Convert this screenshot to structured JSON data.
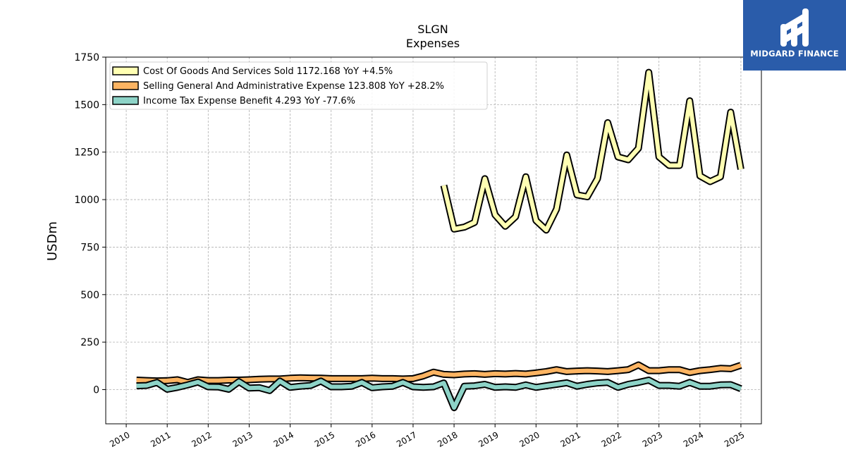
{
  "logo": {
    "text": "MIDGARD FINANCE",
    "background": "#2a5caa"
  },
  "chart_data": {
    "type": "line",
    "title": "SLGN",
    "subtitle": "Expenses",
    "ylabel": "USDm",
    "xlabel": "",
    "ylim": [
      -180,
      1750
    ],
    "xlim": [
      2009.5,
      2025.5
    ],
    "yticks": [
      0,
      250,
      500,
      750,
      1000,
      1250,
      1500,
      1750
    ],
    "xticks": [
      2010,
      2011,
      2012,
      2013,
      2014,
      2015,
      2016,
      2017,
      2018,
      2019,
      2020,
      2021,
      2022,
      2023,
      2024,
      2025
    ],
    "grid": true,
    "legend_position": "top-left",
    "series": [
      {
        "name": "Cost Of Goods And Services Sold  1172.168 YoY +4.5%",
        "color": "#ffffb3",
        "x": [
          2017.75,
          2018.0,
          2018.25,
          2018.5,
          2018.75,
          2019.0,
          2019.25,
          2019.5,
          2019.75,
          2020.0,
          2020.25,
          2020.5,
          2020.75,
          2021.0,
          2021.25,
          2021.5,
          2021.75,
          2022.0,
          2022.25,
          2022.5,
          2022.75,
          2023.0,
          2023.25,
          2023.5,
          2023.75,
          2024.0,
          2024.25,
          2024.5,
          2024.75,
          2025.0
        ],
        "y": [
          1075,
          845,
          855,
          880,
          1110,
          920,
          860,
          910,
          1120,
          890,
          840,
          950,
          1235,
          1025,
          1015,
          1110,
          1405,
          1225,
          1210,
          1270,
          1670,
          1225,
          1180,
          1180,
          1520,
          1125,
          1095,
          1120,
          1460,
          1160
        ]
      },
      {
        "name": "Selling General And Administrative Expense  123.808 YoY +28.2%",
        "color": "#fdb462",
        "x": [
          2010.25,
          2010.5,
          2010.75,
          2011.0,
          2011.25,
          2011.5,
          2011.75,
          2012.0,
          2012.25,
          2012.5,
          2012.75,
          2013.0,
          2013.25,
          2013.5,
          2013.75,
          2014.0,
          2014.25,
          2014.5,
          2014.75,
          2015.0,
          2015.25,
          2015.5,
          2015.75,
          2016.0,
          2016.25,
          2016.5,
          2016.75,
          2017.0,
          2017.25,
          2017.5,
          2017.75,
          2018.0,
          2018.25,
          2018.5,
          2018.75,
          2019.0,
          2019.25,
          2019.5,
          2019.75,
          2020.0,
          2020.25,
          2020.5,
          2020.75,
          2021.0,
          2021.25,
          2021.5,
          2021.75,
          2022.0,
          2022.25,
          2022.5,
          2022.75,
          2023.0,
          2023.25,
          2023.5,
          2023.75,
          2024.0,
          2024.25,
          2024.5,
          2024.75,
          2025.0
        ],
        "y": [
          50,
          48,
          46,
          47,
          52,
          38,
          52,
          48,
          48,
          50,
          50,
          52,
          55,
          56,
          56,
          60,
          62,
          61,
          60,
          58,
          58,
          58,
          58,
          60,
          58,
          58,
          56,
          58,
          72,
          92,
          80,
          78,
          82,
          84,
          80,
          84,
          82,
          85,
          82,
          88,
          95,
          105,
          95,
          98,
          100,
          98,
          95,
          100,
          105,
          130,
          100,
          100,
          105,
          105,
          90,
          100,
          105,
          112,
          110,
          128
        ]
      },
      {
        "name": "Income Tax Expense Benefit  4.293 YoY -77.6%",
        "color": "#8dd3c7",
        "x": [
          2010.25,
          2010.5,
          2010.75,
          2011.0,
          2011.25,
          2011.5,
          2011.75,
          2012.0,
          2012.25,
          2012.5,
          2012.75,
          2013.0,
          2013.25,
          2013.5,
          2013.75,
          2014.0,
          2014.25,
          2014.5,
          2014.75,
          2015.0,
          2015.25,
          2015.5,
          2015.75,
          2016.0,
          2016.25,
          2016.5,
          2016.75,
          2017.0,
          2017.25,
          2017.5,
          2017.75,
          2018.0,
          2018.25,
          2018.5,
          2018.75,
          2019.0,
          2019.25,
          2019.5,
          2019.75,
          2020.0,
          2020.25,
          2020.5,
          2020.75,
          2021.0,
          2021.25,
          2021.5,
          2021.75,
          2022.0,
          2022.25,
          2022.5,
          2022.75,
          2023.0,
          2023.25,
          2023.5,
          2023.75,
          2024.0,
          2024.25,
          2024.5,
          2024.75,
          2025.0
        ],
        "y": [
          20,
          22,
          38,
          2,
          12,
          25,
          40,
          15,
          14,
          2,
          42,
          8,
          10,
          -5,
          45,
          12,
          18,
          22,
          45,
          15,
          15,
          18,
          38,
          10,
          15,
          18,
          38,
          15,
          12,
          15,
          35,
          -95,
          18,
          20,
          28,
          12,
          15,
          12,
          25,
          12,
          20,
          28,
          36,
          18,
          28,
          35,
          38,
          12,
          28,
          38,
          50,
          22,
          22,
          18,
          38,
          18,
          18,
          25,
          26,
          5
        ]
      }
    ]
  }
}
